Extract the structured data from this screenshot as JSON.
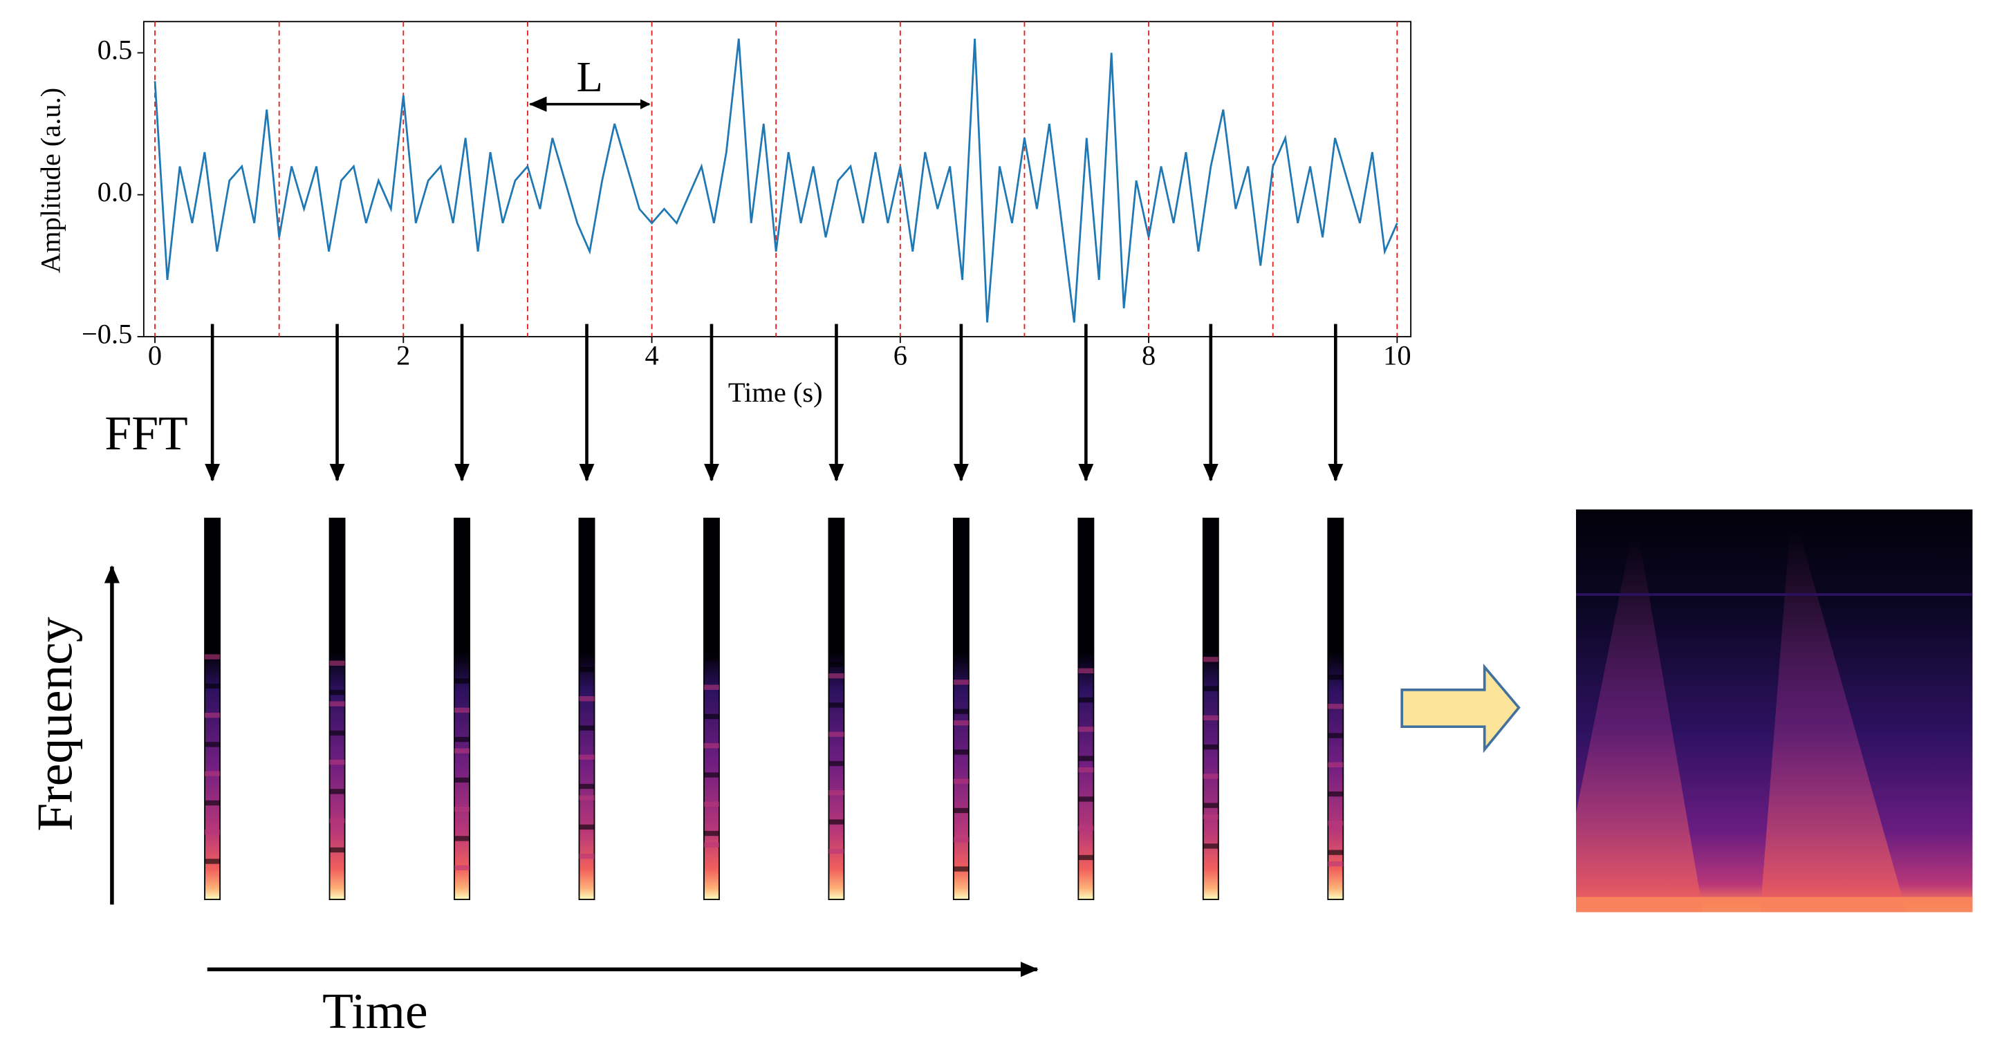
{
  "signal_plot": {
    "type": "line",
    "xlabel": "Time (s)",
    "ylabel": "Amplitude (a.u.)",
    "xlim": [
      -0.09,
      10.11
    ],
    "ylim": [
      -0.5,
      0.61
    ],
    "xticks": [
      0,
      2,
      4,
      6,
      8,
      10
    ],
    "yticks": [
      {
        "value": -0.5,
        "label": "−0.5"
      },
      {
        "value": 0,
        "label": "0.0"
      },
      0.5
    ],
    "color": "#1f77b4",
    "window_boundaries": [
      0,
      1,
      2,
      3,
      4,
      5,
      6,
      7,
      8,
      9,
      10
    ],
    "window_annotation": "L",
    "series": [
      {
        "name": null,
        "color": "#1f77b4",
        "x": [
          0,
          0.1,
          0.2,
          0.3,
          0.4,
          0.5,
          0.6,
          0.7,
          0.8,
          0.9,
          1,
          1.1,
          1.2,
          1.3,
          1.4,
          1.5,
          1.6,
          1.7,
          1.8,
          1.9,
          2,
          2.1,
          2.2,
          2.3,
          2.4,
          2.5,
          2.6,
          2.7,
          2.8,
          2.9,
          3,
          3.1,
          3.2,
          3.3,
          3.4,
          3.5,
          3.6,
          3.7,
          3.8,
          3.9,
          4,
          4.1,
          4.2,
          4.3,
          4.4,
          4.5,
          4.6,
          4.7,
          4.8,
          4.9,
          5,
          5.1,
          5.2,
          5.3,
          5.4,
          5.5,
          5.6,
          5.7,
          5.8,
          5.9,
          6,
          6.1,
          6.2,
          6.3,
          6.4,
          6.5,
          6.6,
          6.7,
          6.8,
          6.9,
          7,
          7.1,
          7.2,
          7.3,
          7.4,
          7.5,
          7.6,
          7.7,
          7.8,
          7.9,
          8,
          8.1,
          8.2,
          8.3,
          8.4,
          8.5,
          8.6,
          8.7,
          8.8,
          8.9,
          9,
          9.1,
          9.2,
          9.3,
          9.4,
          9.5,
          9.6,
          9.7,
          9.8,
          9.9,
          10
        ],
        "values": [
          0.4,
          -0.3,
          0.1,
          -0.1,
          0.15,
          -0.2,
          0.05,
          0.1,
          -0.1,
          0.3,
          -0.15,
          0.1,
          -0.05,
          0.1,
          -0.2,
          0.05,
          0.1,
          -0.1,
          0.05,
          -0.05,
          0.35,
          -0.1,
          0.05,
          0.1,
          -0.1,
          0.2,
          -0.2,
          0.15,
          -0.1,
          0.05,
          0.1,
          -0.05,
          0.2,
          0.05,
          -0.1,
          -0.2,
          0.05,
          0.25,
          0.1,
          -0.05,
          -0.1,
          -0.05,
          -0.1,
          0,
          0.1,
          -0.1,
          0.15,
          0.55,
          -0.1,
          0.25,
          -0.2,
          0.15,
          -0.1,
          0.1,
          -0.15,
          0.05,
          0.1,
          -0.1,
          0.15,
          -0.1,
          0.1,
          -0.2,
          0.15,
          -0.05,
          0.1,
          -0.3,
          0.55,
          -0.45,
          0.1,
          -0.1,
          0.2,
          -0.05,
          0.25,
          -0.1,
          -0.45,
          0.2,
          -0.3,
          0.5,
          -0.4,
          0.05,
          -0.15,
          0.1,
          -0.1,
          0.15,
          -0.2,
          0.1,
          0.3,
          -0.05,
          0.1,
          -0.25,
          0.1,
          0.2,
          -0.1,
          0.1,
          -0.15,
          0.2,
          0.05,
          -0.1,
          0.15,
          -0.2,
          -0.1
        ]
      }
    ]
  },
  "fft_label": "FFT",
  "frequency_axis_label": "Frequency",
  "time_axis_label": "Time"
}
